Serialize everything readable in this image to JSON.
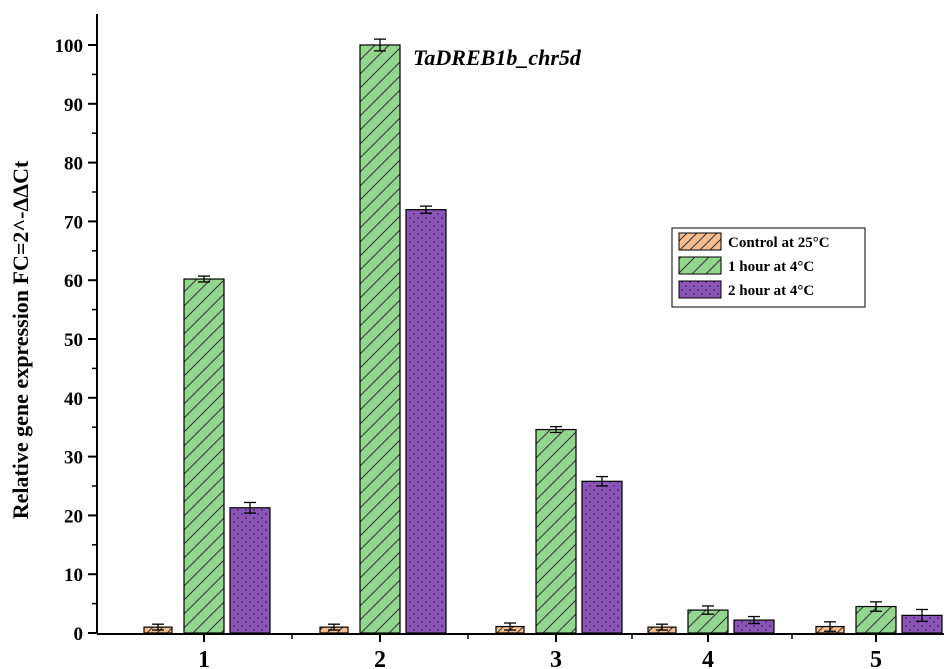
{
  "chart_data": {
    "type": "bar",
    "title": "TaDREB1b_chr5d",
    "ylabel": "Relative gene expression FC=2^-ΔΔCt",
    "xlabel": "",
    "ylim": [
      0,
      105
    ],
    "yticks": [
      0,
      10,
      20,
      30,
      40,
      50,
      60,
      70,
      80,
      90,
      100
    ],
    "categories": [
      "1",
      "2",
      "3",
      "4",
      "5"
    ],
    "legend_position": "right-middle",
    "grid": false,
    "series": [
      {
        "name": "Control  at 25°C",
        "values": [
          1.0,
          1.0,
          1.1,
          1.0,
          1.1
        ],
        "errors": [
          0.5,
          0.5,
          0.6,
          0.5,
          0.8
        ],
        "color": "#f6be8f",
        "pattern": "diagonal-hatch"
      },
      {
        "name": "1 hour at 4°C",
        "values": [
          60.2,
          100.0,
          34.6,
          3.9,
          4.5
        ],
        "errors": [
          0.5,
          1.0,
          0.5,
          0.7,
          0.8
        ],
        "color": "#94d590",
        "pattern": "diagonal-hatch"
      },
      {
        "name": "2 hour at 4°C",
        "values": [
          21.3,
          72.0,
          25.8,
          2.2,
          3.0
        ],
        "errors": [
          0.9,
          0.6,
          0.8,
          0.6,
          1.0
        ],
        "color": "#8a55b6",
        "pattern": "dots"
      }
    ]
  }
}
